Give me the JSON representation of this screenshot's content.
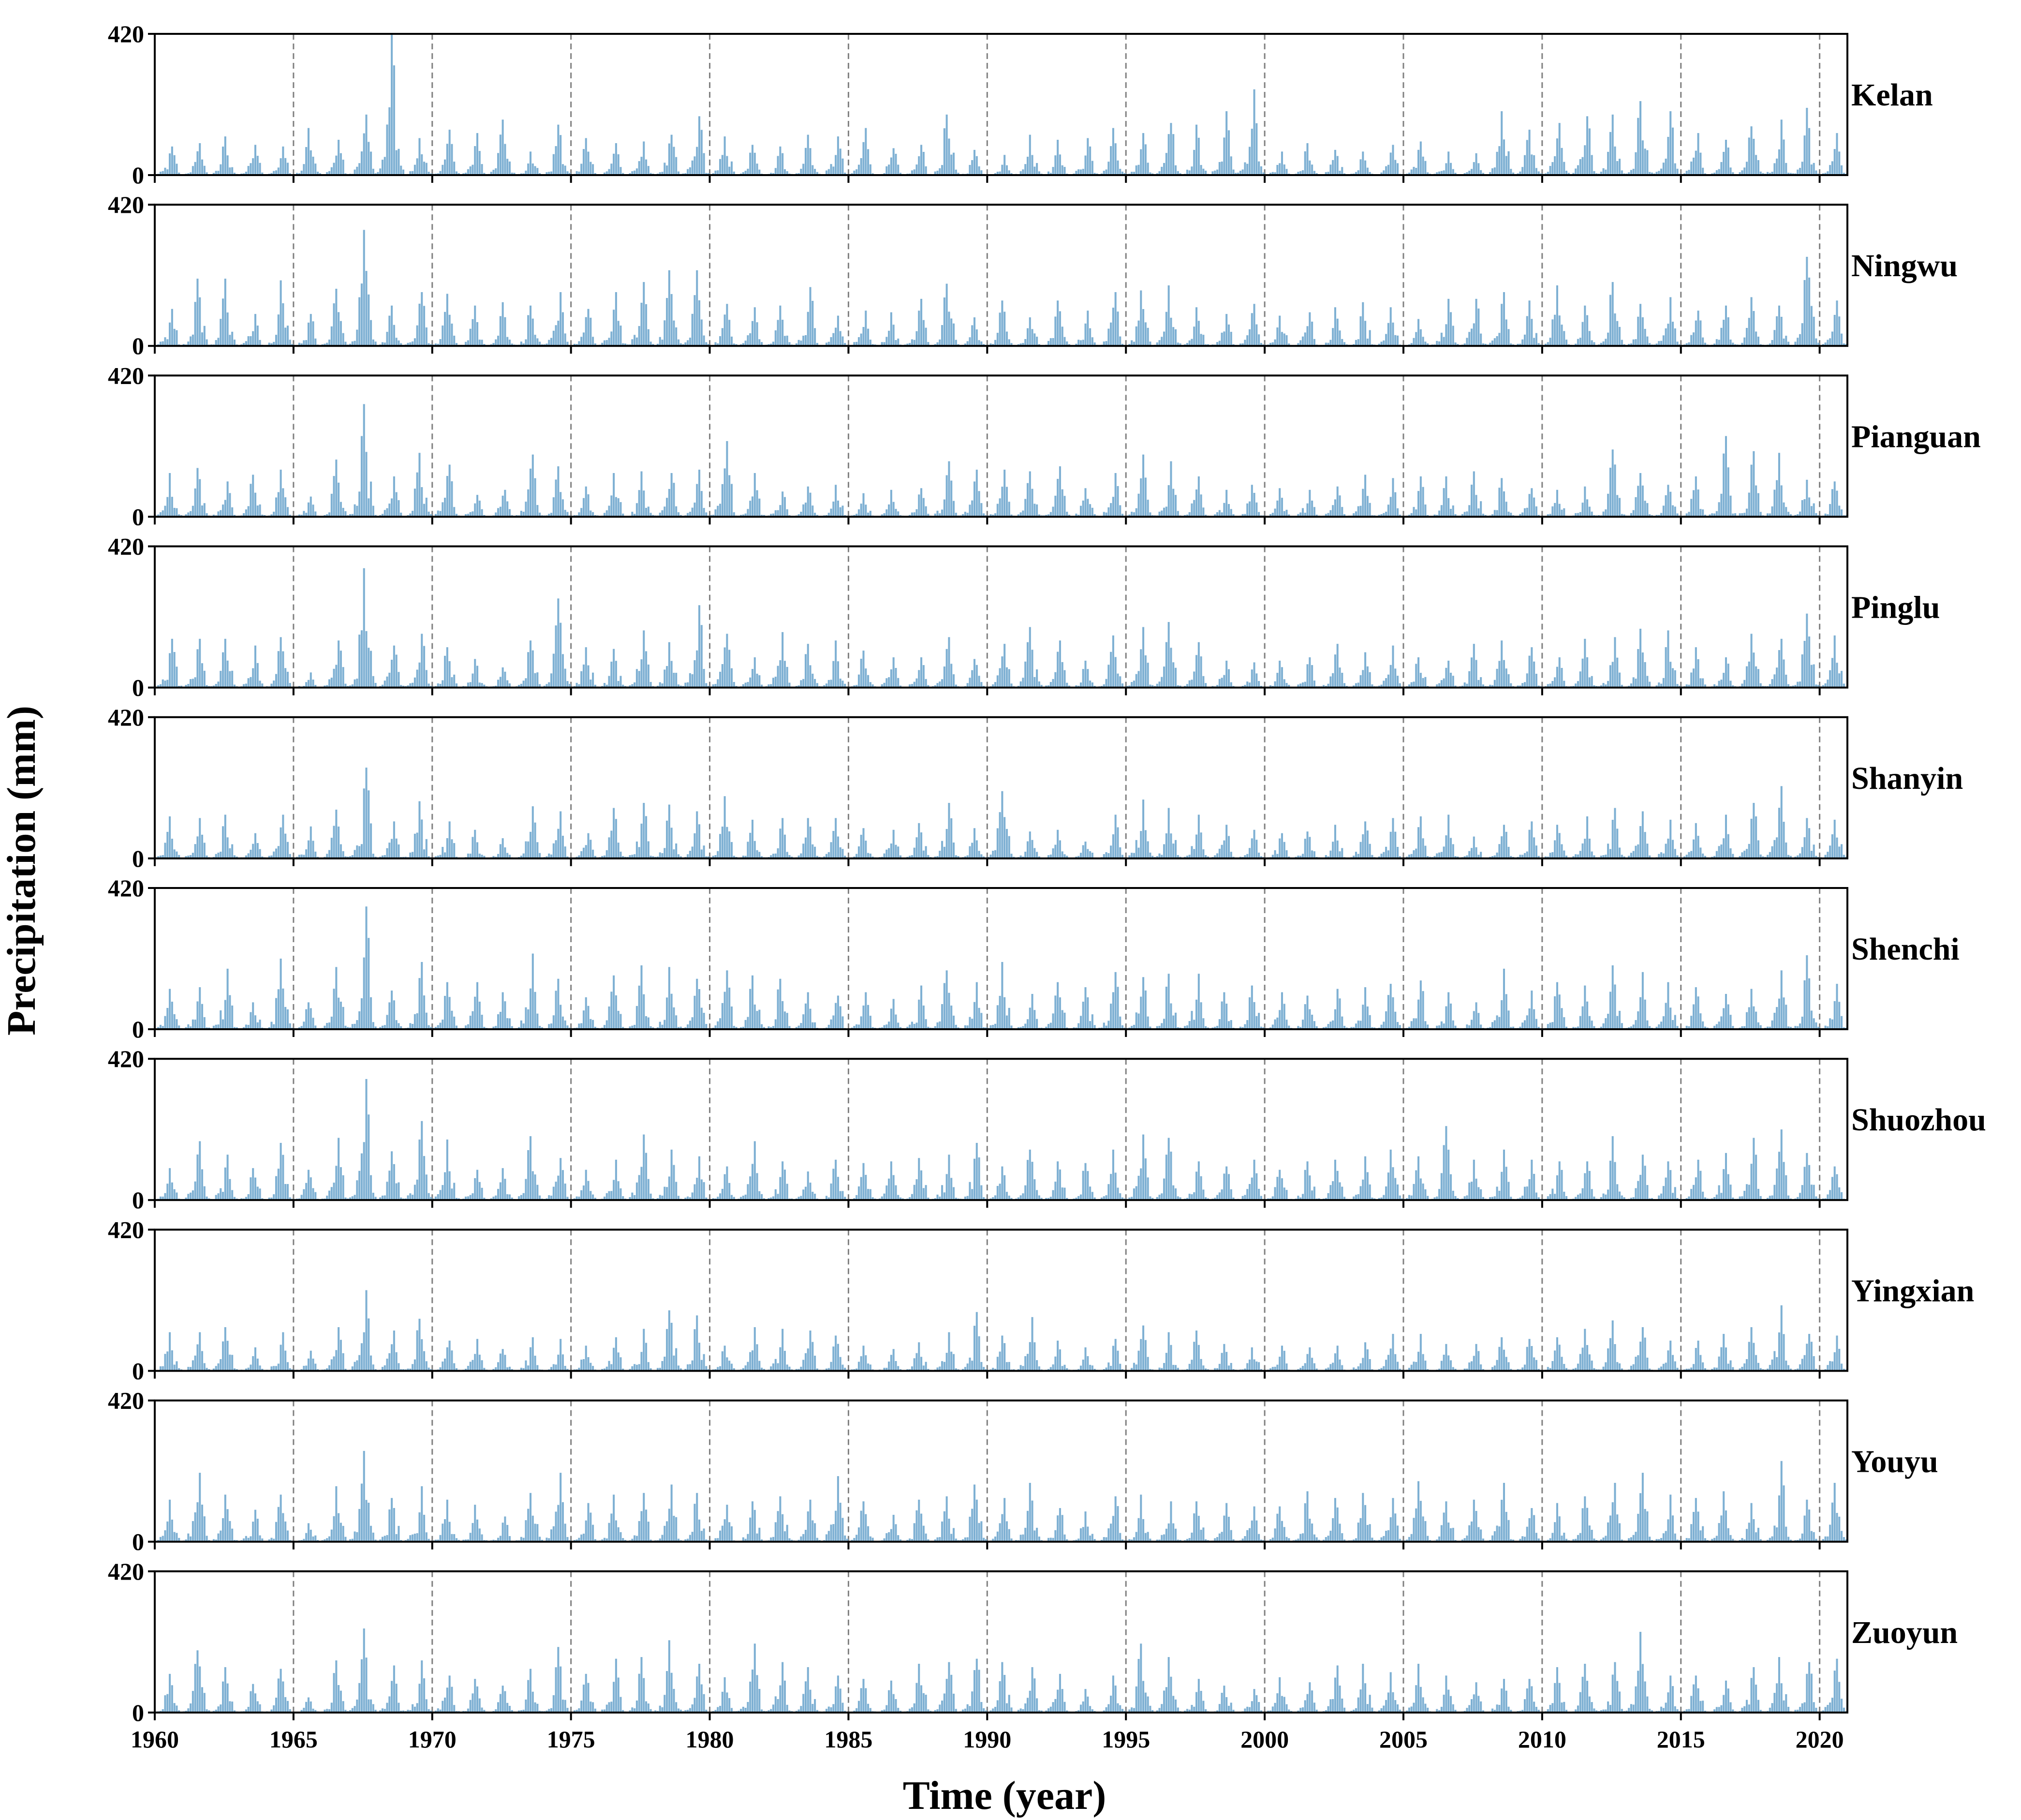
{
  "chart_data": {
    "type": "bar",
    "ylabel": "Precipitation (mm)",
    "xlabel": "Time (year)",
    "ylim": [
      0,
      420
    ],
    "y_ticks": [
      "0",
      "420"
    ],
    "xlim": [
      1960,
      2021
    ],
    "x_ticks": [
      "1960",
      "1965",
      "1970",
      "1975",
      "1980",
      "1985",
      "1990",
      "1995",
      "2000",
      "2005",
      "2010",
      "2015",
      "2020"
    ],
    "dashed_verticals_at": [
      1965,
      1970,
      1975,
      1980,
      1985,
      1990,
      1995,
      2000,
      2005,
      2010,
      2015,
      2020
    ],
    "bar_color": "#7eb0d3",
    "frequency": "monthly",
    "series": [
      {
        "name": "Kelan",
        "annual_peak_mm": [
          85,
          95,
          115,
          90,
          85,
          140,
          105,
          180,
          420,
          110,
          135,
          125,
          165,
          70,
          150,
          110,
          95,
          100,
          120,
          175,
          115,
          90,
          85,
          120,
          115,
          140,
          80,
          90,
          180,
          75,
          60,
          120,
          105,
          110,
          140,
          125,
          155,
          150,
          190,
          255,
          70,
          95,
          75,
          70,
          90,
          100,
          70,
          65,
          190,
          135,
          155,
          175,
          180,
          220,
          190,
          125,
          105,
          145,
          165,
          200,
          125
        ]
      },
      {
        "name": "Ningwu",
        "annual_peak_mm": [
          110,
          200,
          200,
          95,
          195,
          95,
          170,
          345,
          120,
          160,
          155,
          120,
          130,
          120,
          160,
          110,
          160,
          190,
          225,
          225,
          125,
          115,
          120,
          175,
          90,
          105,
          100,
          140,
          185,
          85,
          135,
          85,
          135,
          105,
          160,
          165,
          180,
          115,
          95,
          125,
          90,
          100,
          115,
          130,
          115,
          80,
          140,
          140,
          160,
          135,
          180,
          120,
          190,
          125,
          145,
          105,
          120,
          145,
          120,
          265,
          135
        ]
      },
      {
        "name": "Pianguan",
        "annual_peak_mm": [
          130,
          145,
          105,
          125,
          140,
          60,
          170,
          335,
          120,
          190,
          155,
          65,
          80,
          185,
          150,
          90,
          130,
          135,
          130,
          140,
          225,
          130,
          75,
          90,
          95,
          70,
          80,
          85,
          165,
          140,
          140,
          135,
          150,
          85,
          130,
          185,
          165,
          120,
          80,
          95,
          85,
          80,
          90,
          125,
          115,
          120,
          120,
          135,
          115,
          85,
          80,
          90,
          200,
          130,
          95,
          120,
          240,
          195,
          190,
          110,
          105
        ]
      },
      {
        "name": "Pinglu",
        "annual_peak_mm": [
          145,
          145,
          145,
          125,
          150,
          45,
          140,
          355,
          125,
          160,
          120,
          85,
          60,
          140,
          265,
          120,
          115,
          170,
          135,
          245,
          160,
          90,
          165,
          130,
          140,
          110,
          90,
          90,
          150,
          85,
          130,
          180,
          140,
          80,
          155,
          180,
          195,
          135,
          80,
          75,
          80,
          90,
          130,
          105,
          125,
          90,
          80,
          130,
          140,
          120,
          90,
          145,
          150,
          175,
          170,
          120,
          90,
          160,
          145,
          220,
          155
        ]
      },
      {
        "name": "Shanyin",
        "annual_peak_mm": [
          125,
          120,
          130,
          75,
          130,
          95,
          145,
          270,
          110,
          170,
          110,
          85,
          60,
          155,
          140,
          75,
          150,
          165,
          160,
          140,
          185,
          115,
          120,
          120,
          120,
          90,
          85,
          105,
          165,
          90,
          200,
          80,
          85,
          50,
          130,
          175,
          150,
          130,
          100,
          85,
          75,
          80,
          100,
          110,
          120,
          125,
          130,
          65,
          100,
          110,
          100,
          125,
          150,
          140,
          115,
          105,
          130,
          165,
          215,
          120,
          115
        ]
      },
      {
        "name": "Shenchi",
        "annual_peak_mm": [
          120,
          125,
          180,
          80,
          210,
          80,
          185,
          365,
          115,
          200,
          140,
          140,
          110,
          225,
          150,
          95,
          160,
          190,
          185,
          150,
          175,
          160,
          150,
          110,
          100,
          110,
          90,
          130,
          175,
          140,
          200,
          105,
          140,
          125,
          170,
          155,
          165,
          165,
          110,
          130,
          110,
          100,
          120,
          125,
          135,
          145,
          110,
          80,
          180,
          115,
          140,
          130,
          190,
          170,
          140,
          125,
          105,
          120,
          175,
          220,
          135
        ]
      },
      {
        "name": "Shuozhou",
        "annual_peak_mm": [
          95,
          175,
          135,
          95,
          170,
          90,
          185,
          360,
          145,
          235,
          180,
          90,
          95,
          190,
          125,
          90,
          120,
          195,
          150,
          130,
          100,
          175,
          115,
          85,
          120,
          110,
          115,
          125,
          135,
          170,
          100,
          150,
          115,
          110,
          150,
          195,
          185,
          115,
          100,
          120,
          90,
          115,
          120,
          130,
          150,
          130,
          220,
          120,
          150,
          120,
          115,
          115,
          190,
          135,
          115,
          120,
          140,
          185,
          210,
          140,
          100
        ]
      },
      {
        "name": "Yingxian",
        "annual_peak_mm": [
          115,
          115,
          130,
          70,
          115,
          60,
          130,
          240,
          120,
          155,
          90,
          95,
          65,
          100,
          95,
          75,
          100,
          125,
          180,
          165,
          75,
          130,
          125,
          120,
          105,
          75,
          65,
          85,
          115,
          175,
          105,
          160,
          90,
          70,
          95,
          135,
          115,
          120,
          80,
          70,
          75,
          70,
          75,
          85,
          110,
          110,
          80,
          80,
          100,
          95,
          100,
          125,
          150,
          130,
          90,
          90,
          110,
          130,
          195,
          110,
          105
        ]
      },
      {
        "name": "Youyu",
        "annual_peak_mm": [
          125,
          205,
          140,
          95,
          140,
          55,
          165,
          270,
          130,
          165,
          125,
          110,
          75,
          145,
          205,
          115,
          140,
          145,
          170,
          145,
          110,
          120,
          135,
          125,
          195,
          120,
          80,
          125,
          135,
          170,
          130,
          175,
          100,
          90,
          135,
          140,
          120,
          120,
          115,
          105,
          105,
          150,
          130,
          145,
          130,
          180,
          120,
          125,
          175,
          100,
          115,
          135,
          175,
          205,
          140,
          130,
          150,
          115,
          240,
          125,
          175
        ]
      },
      {
        "name": "Zuoyun",
        "annual_peak_mm": [
          115,
          185,
          135,
          85,
          130,
          45,
          155,
          250,
          140,
          155,
          110,
          100,
          80,
          130,
          195,
          115,
          160,
          165,
          215,
          145,
          105,
          205,
          150,
          135,
          110,
          100,
          95,
          145,
          150,
          160,
          150,
          135,
          115,
          70,
          110,
          205,
          165,
          100,
          80,
          70,
          105,
          90,
          140,
          145,
          120,
          145,
          110,
          90,
          100,
          100,
          135,
          145,
          150,
          240,
          110,
          110,
          95,
          135,
          165,
          150,
          160
        ]
      }
    ]
  }
}
